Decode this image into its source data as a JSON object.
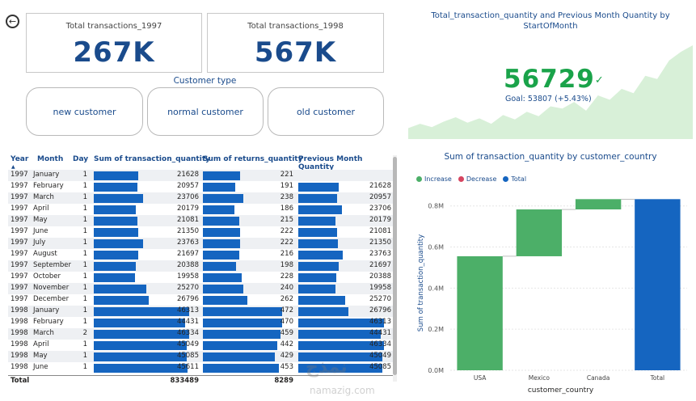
{
  "nav": {
    "back_icon": "←"
  },
  "kpi": [
    {
      "label": "Total transactions_1997",
      "value": "267K"
    },
    {
      "label": "Total transactions_1998",
      "value": "567K"
    }
  ],
  "slicer": {
    "title": "Customer type",
    "options": [
      "new customer",
      "normal customer",
      "old customer"
    ]
  },
  "kpi_chart": {
    "title": "Total_transaction_quantity and Previous Month Quantity by StartOfMonth",
    "value": "56729",
    "goal": "Goal: 53807 (+5.43%)",
    "check": "✓",
    "trend": [
      0.1,
      0.14,
      0.11,
      0.16,
      0.2,
      0.15,
      0.19,
      0.14,
      0.22,
      0.18,
      0.25,
      0.21,
      0.3,
      0.28,
      0.34,
      0.26,
      0.4,
      0.36,
      0.46,
      0.42,
      0.58,
      0.55,
      0.72,
      0.8,
      0.86
    ],
    "colors": {
      "value": "#1aa34a",
      "area": "#d8f0d8"
    }
  },
  "table": {
    "headers": {
      "year": "Year",
      "month": "Month",
      "day": "Day",
      "tq": "Sum of transaction_quantity",
      "rq": "Sum of returns_quantity",
      "pm": "Previous Month Quantity"
    },
    "sort_icon": "▲",
    "rows": [
      {
        "year": "1997",
        "month": "January",
        "day": "1",
        "tq": "21628",
        "rq": "221",
        "pm": ""
      },
      {
        "year": "1997",
        "month": "February",
        "day": "1",
        "tq": "20957",
        "rq": "191",
        "pm": "21628"
      },
      {
        "year": "1997",
        "month": "March",
        "day": "1",
        "tq": "23706",
        "rq": "238",
        "pm": "20957"
      },
      {
        "year": "1997",
        "month": "April",
        "day": "1",
        "tq": "20179",
        "rq": "186",
        "pm": "23706"
      },
      {
        "year": "1997",
        "month": "May",
        "day": "1",
        "tq": "21081",
        "rq": "215",
        "pm": "20179"
      },
      {
        "year": "1997",
        "month": "June",
        "day": "1",
        "tq": "21350",
        "rq": "222",
        "pm": "21081"
      },
      {
        "year": "1997",
        "month": "July",
        "day": "1",
        "tq": "23763",
        "rq": "222",
        "pm": "21350"
      },
      {
        "year": "1997",
        "month": "August",
        "day": "1",
        "tq": "21697",
        "rq": "216",
        "pm": "23763"
      },
      {
        "year": "1997",
        "month": "September",
        "day": "1",
        "tq": "20388",
        "rq": "198",
        "pm": "21697"
      },
      {
        "year": "1997",
        "month": "October",
        "day": "1",
        "tq": "19958",
        "rq": "228",
        "pm": "20388"
      },
      {
        "year": "1997",
        "month": "November",
        "day": "1",
        "tq": "25270",
        "rq": "240",
        "pm": "19958"
      },
      {
        "year": "1997",
        "month": "December",
        "day": "1",
        "tq": "26796",
        "rq": "262",
        "pm": "25270"
      },
      {
        "year": "1998",
        "month": "January",
        "day": "1",
        "tq": "46313",
        "rq": "472",
        "pm": "26796"
      },
      {
        "year": "1998",
        "month": "February",
        "day": "1",
        "tq": "44431",
        "rq": "470",
        "pm": "46313"
      },
      {
        "year": "1998",
        "month": "March",
        "day": "2",
        "tq": "46334",
        "rq": "459",
        "pm": "44431"
      },
      {
        "year": "1998",
        "month": "April",
        "day": "1",
        "tq": "45049",
        "rq": "442",
        "pm": "46334"
      },
      {
        "year": "1998",
        "month": "May",
        "day": "1",
        "tq": "45085",
        "rq": "429",
        "pm": "45049"
      },
      {
        "year": "1998",
        "month": "June",
        "day": "1",
        "tq": "45611",
        "rq": "453",
        "pm": "45085"
      }
    ],
    "total": {
      "label": "Total",
      "tq": "833489",
      "rq": "8289"
    },
    "bar_color": "#1565c0"
  },
  "chart_data": {
    "type": "bar",
    "title": "Sum of transaction_quantity by customer_country",
    "legend": [
      {
        "name": "Increase",
        "color": "#4caf68"
      },
      {
        "name": "Decrease",
        "color": "#d64560"
      },
      {
        "name": "Total",
        "color": "#1565c0"
      }
    ],
    "categories": [
      "USA",
      "Mexico",
      "Canada",
      "Total"
    ],
    "steps": [
      {
        "category": "USA",
        "start": 0,
        "end": 0.555,
        "kind": "Increase"
      },
      {
        "category": "Mexico",
        "start": 0.555,
        "end": 0.783,
        "kind": "Increase"
      },
      {
        "category": "Canada",
        "start": 0.783,
        "end": 0.833,
        "kind": "Increase"
      },
      {
        "category": "Total",
        "start": 0,
        "end": 0.833,
        "kind": "Total"
      }
    ],
    "xlabel": "customer_country",
    "ylabel": "Sum of transaction_quantity",
    "yticks": [
      "0.0M",
      "0.2M",
      "0.4M",
      "0.6M",
      "0.8M"
    ],
    "ylim": [
      0,
      0.8
    ],
    "grid": true,
    "legend_position": "top-left"
  },
  "watermark": {
    "text_ar": "نمذج",
    "text_en": "namazig.com"
  }
}
